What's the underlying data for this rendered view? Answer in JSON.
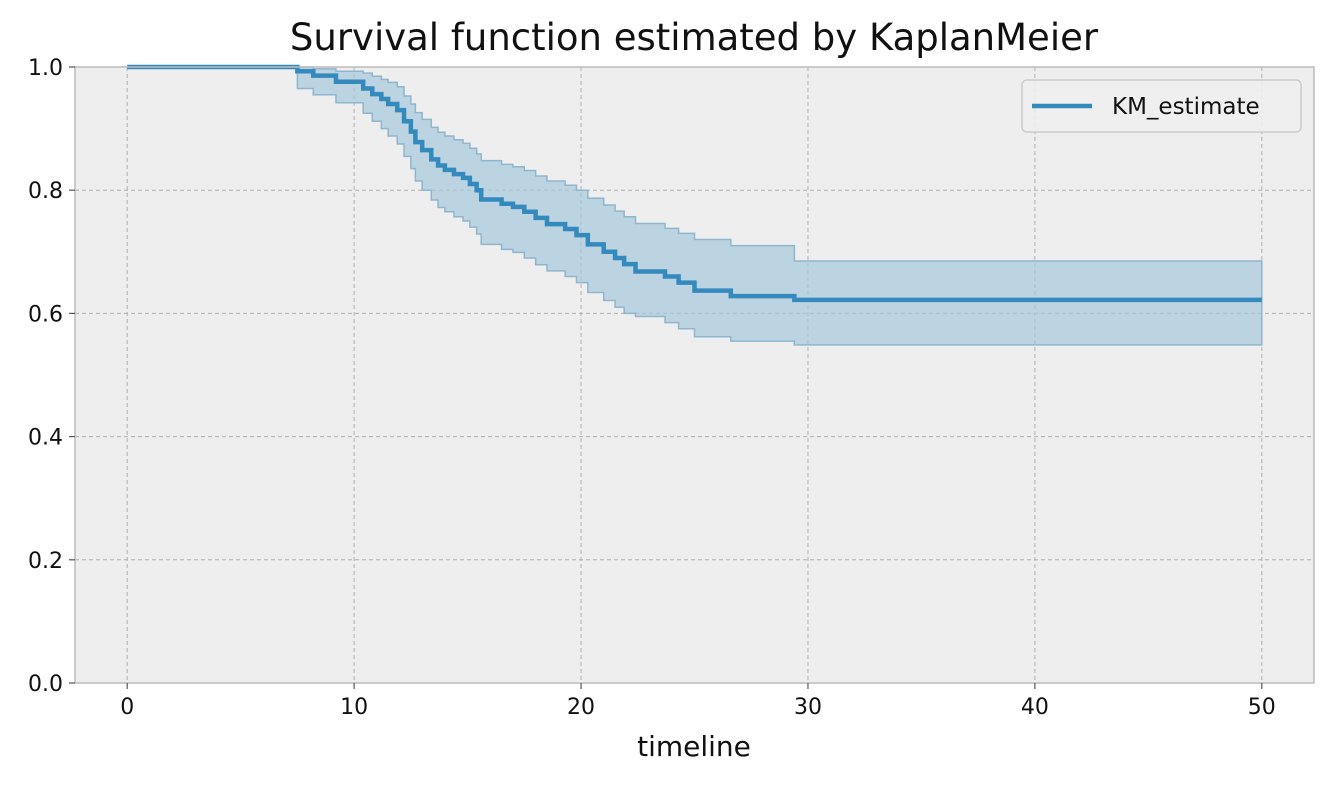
{
  "chart_data": {
    "type": "line",
    "title": "Survival function estimated by KaplanMeier",
    "xlabel": "timeline",
    "ylabel": "",
    "xlim": [
      -2.3,
      52.3
    ],
    "ylim": [
      0.0,
      1.0
    ],
    "x_ticks": [
      0,
      10,
      20,
      30,
      40,
      50
    ],
    "y_ticks": [
      0.0,
      0.2,
      0.4,
      0.6,
      0.8,
      1.0
    ],
    "x_tick_labels": [
      "0",
      "10",
      "20",
      "30",
      "40",
      "50"
    ],
    "y_tick_labels": [
      "0.0",
      "0.2",
      "0.4",
      "0.6",
      "0.8",
      "1.0"
    ],
    "grid": true,
    "legend_position": "top-right",
    "colors": {
      "line": "#348abd",
      "band": "#a6c8dc",
      "band_edge": "#8fb6cf",
      "plot_bg": "#eeeeee",
      "grid": "#b0b0b0",
      "frame": "#bcbcbc"
    },
    "series": [
      {
        "name": "KM_estimate",
        "step": "post",
        "x": [
          0,
          7.5,
          8.2,
          9.2,
          10.4,
          10.8,
          11.2,
          11.5,
          11.9,
          12.2,
          12.5,
          12.7,
          13.0,
          13.4,
          13.7,
          14.0,
          14.4,
          14.8,
          15.1,
          15.4,
          15.6,
          16.5,
          17.0,
          17.5,
          18.0,
          18.5,
          19.3,
          19.8,
          20.3,
          21.0,
          21.5,
          21.9,
          22.4,
          23.7,
          24.3,
          25.0,
          26.6,
          29.4,
          50.0
        ],
        "values": [
          1.0,
          0.993,
          0.986,
          0.976,
          0.965,
          0.956,
          0.948,
          0.94,
          0.93,
          0.912,
          0.895,
          0.878,
          0.865,
          0.85,
          0.84,
          0.833,
          0.826,
          0.82,
          0.81,
          0.8,
          0.785,
          0.778,
          0.773,
          0.765,
          0.755,
          0.745,
          0.737,
          0.727,
          0.712,
          0.7,
          0.69,
          0.68,
          0.668,
          0.66,
          0.65,
          0.637,
          0.628,
          0.622,
          0.622
        ],
        "ci_lower": [
          1.0,
          0.965,
          0.955,
          0.942,
          0.925,
          0.912,
          0.9,
          0.888,
          0.875,
          0.855,
          0.835,
          0.815,
          0.8,
          0.784,
          0.772,
          0.765,
          0.757,
          0.75,
          0.74,
          0.729,
          0.712,
          0.704,
          0.699,
          0.69,
          0.679,
          0.669,
          0.66,
          0.65,
          0.634,
          0.621,
          0.61,
          0.6,
          0.595,
          0.585,
          0.575,
          0.562,
          0.555,
          0.549,
          0.549
        ],
        "ci_upper": [
          1.0,
          1.0,
          0.997,
          0.993,
          0.99,
          0.985,
          0.98,
          0.975,
          0.968,
          0.953,
          0.94,
          0.926,
          0.915,
          0.902,
          0.894,
          0.888,
          0.882,
          0.876,
          0.868,
          0.859,
          0.848,
          0.842,
          0.838,
          0.832,
          0.823,
          0.815,
          0.808,
          0.8,
          0.787,
          0.776,
          0.766,
          0.757,
          0.746,
          0.738,
          0.73,
          0.72,
          0.71,
          0.685,
          0.685
        ]
      }
    ]
  }
}
